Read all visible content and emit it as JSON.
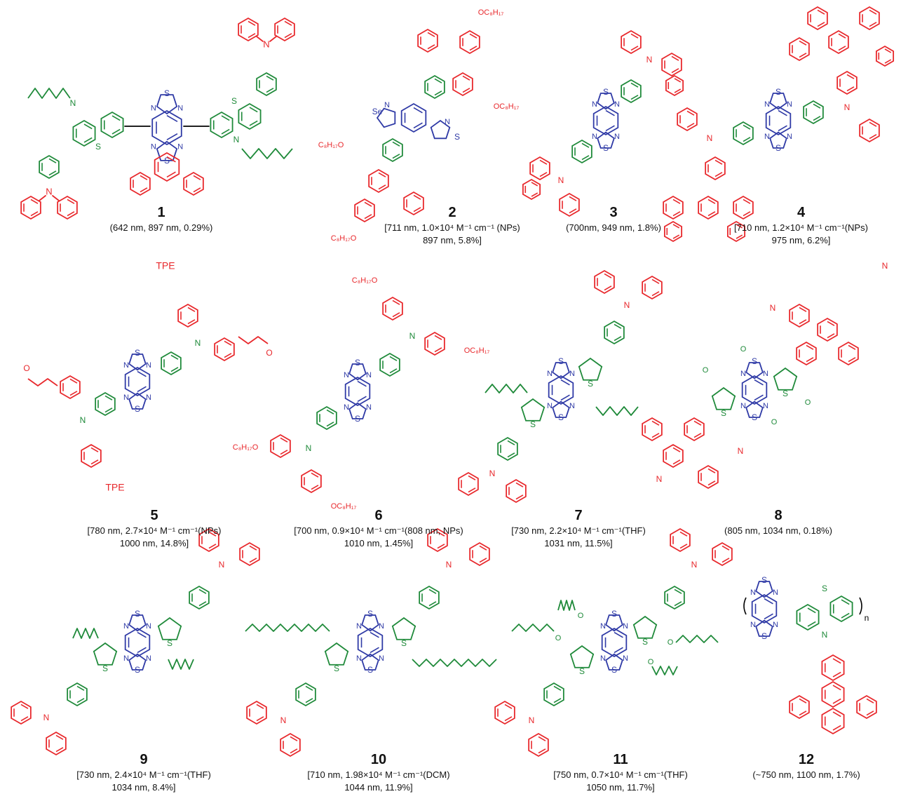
{
  "colors": {
    "donor": "#e8282c",
    "spacer": "#1f8a3a",
    "acceptor": "#2f3aa6"
  },
  "structures": {
    "s1": {
      "number": "1",
      "line1": "(642 nm, 897 nm, 0.29%)",
      "line2": ""
    },
    "s2": {
      "number": "2",
      "line1": "[711 nm, 1.0×10⁴ M⁻¹ cm⁻¹ (NPs)",
      "line2": "897 nm, 5.8%]"
    },
    "s3": {
      "number": "3",
      "line1": "(700nm, 949 nm, 1.8%)",
      "line2": ""
    },
    "s4": {
      "number": "4",
      "line1": "[710 nm, 1.2×10⁴ M⁻¹ cm⁻¹(NPs)",
      "line2": "975 nm, 6.2%]"
    },
    "s5": {
      "number": "5",
      "line1": "[780 nm, 2.7×10⁴ M⁻¹ cm⁻¹(NPs)",
      "line2": "1000 nm, 14.8%]"
    },
    "s6": {
      "number": "6",
      "line1": "[700 nm, 0.9×10⁴ M⁻¹ cm⁻¹(808 nm, NPs)",
      "line2": "1010 nm, 1.45%]"
    },
    "s7": {
      "number": "7",
      "line1": "[730 nm, 2.2×10⁴ M⁻¹ cm⁻¹(THF)",
      "line2": "1031 nm, 11.5%]"
    },
    "s8": {
      "number": "8",
      "line1": "(805 nm, 1034 nm, 0.18%)",
      "line2": ""
    },
    "s9": {
      "number": "9",
      "line1": "[730 nm, 2.4×10⁴ M⁻¹ cm⁻¹(THF)",
      "line2": "1034 nm, 8.4%]"
    },
    "s10": {
      "number": "10",
      "line1": "[710 nm, 1.98×10⁴ M⁻¹ cm⁻¹(DCM)",
      "line2": "1044 nm, 11.9%]"
    },
    "s11": {
      "number": "11",
      "line1": "[750 nm, 0.7×10⁴ M⁻¹ cm⁻¹(THF)",
      "line2": "1050 nm, 11.7%]"
    },
    "s12": {
      "number": "12",
      "line1": "(~750 nm, 1100 nm, 1.7%)",
      "line2": ""
    }
  },
  "atom_labels": {
    "N": "N",
    "S": "S",
    "Se": "Se",
    "O": "O",
    "OC8H17": "OC₈H₁₇",
    "C8H17O": "C₈H₁₇O",
    "TPE": "TPE",
    "n": "n"
  }
}
